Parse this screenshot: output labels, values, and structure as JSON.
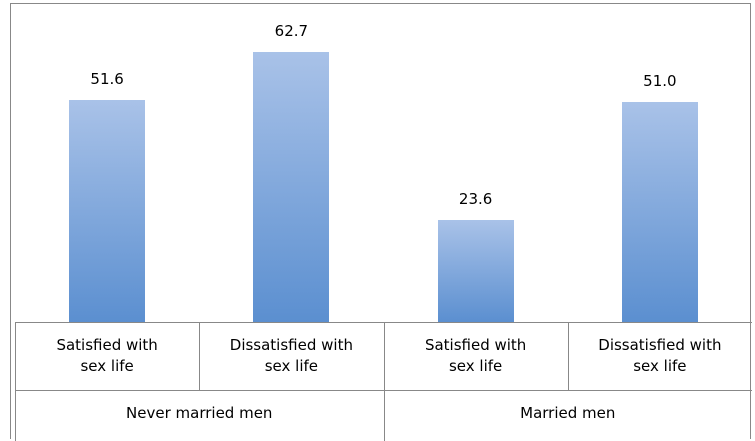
{
  "chart_data": {
    "type": "bar",
    "color": "#5b8fd0",
    "groups": [
      {
        "name": "Never married men",
        "categories": [
          "Satisfied with sex life",
          "Dissatisfied with sex life"
        ],
        "values": [
          51.6,
          62.7
        ],
        "value_labels": [
          "51.6",
          "62.7"
        ]
      },
      {
        "name": "Married men",
        "categories": [
          "Satisfied with sex life",
          "Dissatisfied with sex life"
        ],
        "values": [
          23.6,
          51.0
        ],
        "value_labels": [
          "23.6",
          "51.0"
        ]
      }
    ]
  }
}
